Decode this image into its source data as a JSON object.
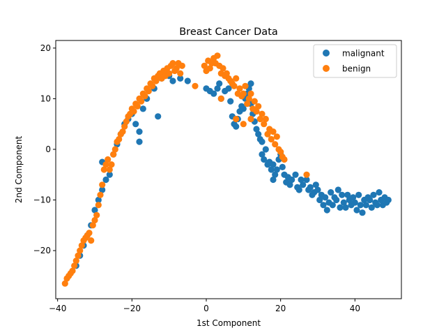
{
  "chart_data": {
    "type": "scatter",
    "title": "Breast Cancer Data",
    "xlabel": "1st Component",
    "ylabel": "2nd Component",
    "xlim": [
      -40.5,
      52.5
    ],
    "ylim": [
      -29.5,
      21.5
    ],
    "xticks": [
      -40,
      -20,
      0,
      20,
      40
    ],
    "yticks": [
      -20,
      -10,
      0,
      10,
      20
    ],
    "grid": false,
    "legend_position": "top-right",
    "series": [
      {
        "name": "malignant",
        "color": "#1f77b4",
        "points": [
          [
            -35,
            -23
          ],
          [
            -34,
            -21
          ],
          [
            -33,
            -19
          ],
          [
            -32,
            -17
          ],
          [
            -31,
            -15
          ],
          [
            -30,
            -12
          ],
          [
            -29,
            -10
          ],
          [
            -28,
            -8
          ],
          [
            -28,
            -2.5
          ],
          [
            -27,
            -6
          ],
          [
            -26,
            -5
          ],
          [
            -25,
            -1
          ],
          [
            -24,
            1
          ],
          [
            -23,
            3
          ],
          [
            -22,
            5
          ],
          [
            -21,
            6
          ],
          [
            -20,
            7
          ],
          [
            -19,
            5
          ],
          [
            -18,
            3.5
          ],
          [
            -18,
            1.5
          ],
          [
            -17,
            8
          ],
          [
            -16,
            10
          ],
          [
            -14,
            12
          ],
          [
            -13,
            6.5
          ],
          [
            -12,
            14
          ],
          [
            -11,
            15
          ],
          [
            -10,
            14.5
          ],
          [
            -9,
            13.5
          ],
          [
            -7,
            14
          ],
          [
            -5,
            13.5
          ],
          [
            0,
            12
          ],
          [
            1,
            11.5
          ],
          [
            2,
            11
          ],
          [
            3,
            12
          ],
          [
            3.5,
            13
          ],
          [
            4,
            10
          ],
          [
            5,
            11.5
          ],
          [
            6,
            12
          ],
          [
            6.5,
            9.5
          ],
          [
            7,
            6.5
          ],
          [
            7.5,
            5
          ],
          [
            8,
            4.5
          ],
          [
            8.5,
            6
          ],
          [
            9,
            7.5
          ],
          [
            9.5,
            8.5
          ],
          [
            10,
            8
          ],
          [
            10.5,
            10
          ],
          [
            11,
            11
          ],
          [
            11.5,
            12
          ],
          [
            12,
            13
          ],
          [
            12,
            9
          ],
          [
            12.5,
            7
          ],
          [
            13,
            5.5
          ],
          [
            13.5,
            4
          ],
          [
            14,
            3
          ],
          [
            14.5,
            2
          ],
          [
            15,
            1.5
          ],
          [
            15,
            -1
          ],
          [
            15.5,
            -2
          ],
          [
            16,
            0
          ],
          [
            16.5,
            -3
          ],
          [
            17,
            -2.5
          ],
          [
            17.5,
            -4
          ],
          [
            18,
            -3
          ],
          [
            18,
            -6
          ],
          [
            18.5,
            -5
          ],
          [
            19,
            -4
          ],
          [
            19.5,
            -2
          ],
          [
            20,
            -1
          ],
          [
            20.5,
            -3.5
          ],
          [
            21,
            -5
          ],
          [
            21.5,
            -6.5
          ],
          [
            22,
            -5.5
          ],
          [
            22.5,
            -7
          ],
          [
            23,
            -6
          ],
          [
            24,
            -5
          ],
          [
            24.5,
            -7.5
          ],
          [
            25,
            -8
          ],
          [
            25.5,
            -6
          ],
          [
            26,
            -7
          ],
          [
            27,
            -6
          ],
          [
            27.5,
            -8
          ],
          [
            28,
            -7.5
          ],
          [
            28.5,
            -9
          ],
          [
            29,
            -8.5
          ],
          [
            29.5,
            -7
          ],
          [
            30,
            -8
          ],
          [
            30.5,
            -10
          ],
          [
            31,
            -9
          ],
          [
            31.5,
            -11
          ],
          [
            32,
            -9.5
          ],
          [
            32.5,
            -12
          ],
          [
            33,
            -10.5
          ],
          [
            33.5,
            -8.5
          ],
          [
            34,
            -11
          ],
          [
            34.5,
            -9.5
          ],
          [
            35,
            -10
          ],
          [
            35.5,
            -8
          ],
          [
            36,
            -11.5
          ],
          [
            36.5,
            -9
          ],
          [
            37,
            -10.5
          ],
          [
            37.5,
            -11.5
          ],
          [
            38,
            -9
          ],
          [
            38.5,
            -10
          ],
          [
            39,
            -11
          ],
          [
            39.5,
            -9.5
          ],
          [
            40,
            -10.5
          ],
          [
            40.5,
            -12
          ],
          [
            41,
            -9
          ],
          [
            41.5,
            -11
          ],
          [
            42,
            -12.5
          ],
          [
            42.5,
            -10
          ],
          [
            43,
            -11
          ],
          [
            43.5,
            -9.5
          ],
          [
            44,
            -10
          ],
          [
            44.5,
            -11.5
          ],
          [
            45,
            -9
          ],
          [
            45.5,
            -10.5
          ],
          [
            46,
            -11
          ],
          [
            46.5,
            -8.5
          ],
          [
            47,
            -10
          ],
          [
            47.5,
            -11
          ],
          [
            48,
            -9.5
          ],
          [
            48.5,
            -10.5
          ],
          [
            49,
            -10
          ]
        ]
      },
      {
        "name": "benign",
        "color": "#ff7f0e",
        "points": [
          [
            -38,
            -26.5
          ],
          [
            -37.5,
            -25.5
          ],
          [
            -37,
            -25
          ],
          [
            -36.5,
            -24.5
          ],
          [
            -36,
            -24
          ],
          [
            -35.5,
            -23
          ],
          [
            -35,
            -22
          ],
          [
            -34.5,
            -21
          ],
          [
            -34,
            -20
          ],
          [
            -33.5,
            -19
          ],
          [
            -33,
            -18
          ],
          [
            -32.5,
            -17.5
          ],
          [
            -32,
            -17
          ],
          [
            -31.5,
            -16.5
          ],
          [
            -31,
            -18
          ],
          [
            -30.5,
            -15
          ],
          [
            -30,
            -14
          ],
          [
            -29.5,
            -13
          ],
          [
            -29,
            -11
          ],
          [
            -28.5,
            -9
          ],
          [
            -28,
            -7
          ],
          [
            -27.5,
            -4
          ],
          [
            -27,
            -3
          ],
          [
            -26.5,
            -2
          ],
          [
            -26,
            -4
          ],
          [
            -25.5,
            -3
          ],
          [
            -25,
            -1
          ],
          [
            -24.5,
            0
          ],
          [
            -24,
            1.5
          ],
          [
            -23.5,
            2
          ],
          [
            -23,
            3
          ],
          [
            -22.5,
            3.5
          ],
          [
            -22,
            4.5
          ],
          [
            -21.5,
            5.5
          ],
          [
            -21,
            6.5
          ],
          [
            -20.5,
            7
          ],
          [
            -20,
            8
          ],
          [
            -19.5,
            7.5
          ],
          [
            -19,
            9
          ],
          [
            -18.5,
            8.5
          ],
          [
            -18,
            10
          ],
          [
            -17.5,
            9.5
          ],
          [
            -17,
            11
          ],
          [
            -16.5,
            10.5
          ],
          [
            -16,
            12
          ],
          [
            -15.5,
            11.5
          ],
          [
            -15,
            13
          ],
          [
            -14.5,
            12.5
          ],
          [
            -14,
            14
          ],
          [
            -13.5,
            13.5
          ],
          [
            -13,
            14.5
          ],
          [
            -12.5,
            15
          ],
          [
            -12,
            14
          ],
          [
            -11.5,
            15.5
          ],
          [
            -11,
            14.5
          ],
          [
            -10.5,
            16
          ],
          [
            -10,
            15
          ],
          [
            -9.5,
            16.5
          ],
          [
            -9,
            17
          ],
          [
            -8.5,
            15.5
          ],
          [
            -8,
            16
          ],
          [
            -7.5,
            17
          ],
          [
            -7,
            15
          ],
          [
            -6.5,
            16.5
          ],
          [
            -3,
            12.5
          ],
          [
            -0.5,
            16.5
          ],
          [
            0,
            15.5
          ],
          [
            0.5,
            17.5
          ],
          [
            1,
            16
          ],
          [
            1.5,
            17
          ],
          [
            2,
            18
          ],
          [
            2.5,
            17
          ],
          [
            3,
            18.5
          ],
          [
            3.5,
            16.5
          ],
          [
            4,
            15
          ],
          [
            4.5,
            16
          ],
          [
            5,
            14.5
          ],
          [
            5.5,
            15
          ],
          [
            6,
            14
          ],
          [
            6.5,
            13.5
          ],
          [
            7,
            13
          ],
          [
            7.5,
            12.5
          ],
          [
            8,
            14
          ],
          [
            8.5,
            11
          ],
          [
            9,
            12
          ],
          [
            9.5,
            10.5
          ],
          [
            10,
            11
          ],
          [
            10.5,
            12.5
          ],
          [
            11,
            9
          ],
          [
            11.5,
            10
          ],
          [
            12,
            11
          ],
          [
            12.5,
            8
          ],
          [
            13,
            9.5
          ],
          [
            13.5,
            7.5
          ],
          [
            14,
            8.5
          ],
          [
            14.5,
            6
          ],
          [
            15,
            7
          ],
          [
            15.5,
            5
          ],
          [
            16,
            6
          ],
          [
            16.5,
            3
          ],
          [
            17,
            4
          ],
          [
            17.5,
            2
          ],
          [
            18,
            3.5
          ],
          [
            18.5,
            1
          ],
          [
            19,
            2.5
          ],
          [
            19.5,
            0
          ],
          [
            20,
            -0.5
          ],
          [
            20.5,
            -1.5
          ],
          [
            21,
            -2
          ],
          [
            27,
            -5
          ],
          [
            4,
            10
          ],
          [
            8,
            6
          ],
          [
            10,
            5
          ],
          [
            12,
            6
          ]
        ]
      }
    ]
  }
}
